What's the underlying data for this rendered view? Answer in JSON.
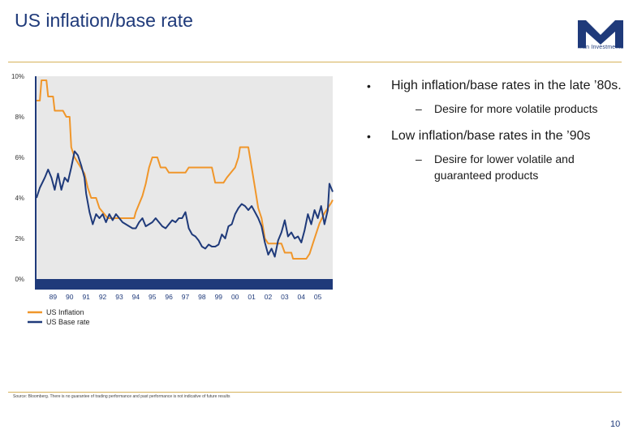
{
  "header": {
    "title": "US inflation/base rate"
  },
  "logo": {
    "text": "Man Investments",
    "color": "#1f3a7a"
  },
  "bullets": [
    {
      "text": "High inflation/base rates in the late ’80s.",
      "sub": "Desire for more volatile products"
    },
    {
      "text": "Low inflation/base rates in the ’90s",
      "sub": "Desire for lower volatile and guaranteed products"
    }
  ],
  "footer": {
    "source": "Source: Bloomberg. There is no guarantee of trading performance and past performance is not indicative of future results",
    "page": "10"
  },
  "chart_data": {
    "type": "line",
    "title": "",
    "xlabel": "",
    "ylabel": "",
    "x_range": [
      1988.0,
      2005.9
    ],
    "ylim": [
      0,
      10
    ],
    "yticks": [
      "0%",
      "2%",
      "4%",
      "6%",
      "8%",
      "10%"
    ],
    "xticks": [
      {
        "label": "89",
        "x": 1989
      },
      {
        "label": "90",
        "x": 1990
      },
      {
        "label": "91",
        "x": 1991
      },
      {
        "label": "92",
        "x": 1992
      },
      {
        "label": "93",
        "x": 1993
      },
      {
        "label": "94",
        "x": 1994
      },
      {
        "label": "95",
        "x": 1995
      },
      {
        "label": "96",
        "x": 1996
      },
      {
        "label": "97",
        "x": 1997
      },
      {
        "label": "98",
        "x": 1998
      },
      {
        "label": "99",
        "x": 1999
      },
      {
        "label": "00",
        "x": 2000
      },
      {
        "label": "01",
        "x": 2001
      },
      {
        "label": "02",
        "x": 2002
      },
      {
        "label": "03",
        "x": 2003
      },
      {
        "label": "04",
        "x": 2004
      },
      {
        "label": "05",
        "x": 2005
      }
    ],
    "grid": false,
    "legend_position": "bottom-left",
    "background": "#e8e8e8",
    "series": [
      {
        "name": "US Inflation",
        "color": "#f0962a",
        "points": [
          [
            1988.0,
            8.8
          ],
          [
            1988.2,
            8.8
          ],
          [
            1988.3,
            9.8
          ],
          [
            1988.6,
            9.8
          ],
          [
            1988.7,
            9.0
          ],
          [
            1989.0,
            9.0
          ],
          [
            1989.1,
            8.3
          ],
          [
            1989.6,
            8.3
          ],
          [
            1989.8,
            8.0
          ],
          [
            1990.0,
            8.0
          ],
          [
            1990.1,
            6.5
          ],
          [
            1990.3,
            6.0
          ],
          [
            1990.6,
            5.6
          ],
          [
            1990.9,
            5.2
          ],
          [
            1991.1,
            4.5
          ],
          [
            1991.3,
            4.0
          ],
          [
            1991.6,
            4.0
          ],
          [
            1991.8,
            3.5
          ],
          [
            1992.0,
            3.3
          ],
          [
            1992.3,
            3.0
          ],
          [
            1993.0,
            3.0
          ],
          [
            1993.5,
            3.0
          ],
          [
            1993.9,
            3.0
          ],
          [
            1994.0,
            3.3
          ],
          [
            1994.2,
            3.7
          ],
          [
            1994.4,
            4.1
          ],
          [
            1994.6,
            4.7
          ],
          [
            1994.8,
            5.5
          ],
          [
            1995.0,
            6.0
          ],
          [
            1995.3,
            6.0
          ],
          [
            1995.5,
            5.5
          ],
          [
            1995.8,
            5.5
          ],
          [
            1996.0,
            5.25
          ],
          [
            1996.5,
            5.25
          ],
          [
            1997.0,
            5.25
          ],
          [
            1997.2,
            5.5
          ],
          [
            1998.0,
            5.5
          ],
          [
            1998.6,
            5.5
          ],
          [
            1998.8,
            4.75
          ],
          [
            1999.3,
            4.75
          ],
          [
            1999.5,
            5.0
          ],
          [
            1999.8,
            5.3
          ],
          [
            2000.0,
            5.5
          ],
          [
            2000.2,
            6.0
          ],
          [
            2000.3,
            6.5
          ],
          [
            2000.8,
            6.5
          ],
          [
            2001.0,
            5.5
          ],
          [
            2001.2,
            4.5
          ],
          [
            2001.4,
            3.5
          ],
          [
            2001.6,
            3.0
          ],
          [
            2001.8,
            2.0
          ],
          [
            2002.0,
            1.75
          ],
          [
            2002.8,
            1.75
          ],
          [
            2003.0,
            1.3
          ],
          [
            2003.4,
            1.3
          ],
          [
            2003.5,
            1.0
          ],
          [
            2004.3,
            1.0
          ],
          [
            2004.5,
            1.25
          ],
          [
            2004.7,
            1.75
          ],
          [
            2004.9,
            2.25
          ],
          [
            2005.1,
            2.75
          ],
          [
            2005.4,
            3.25
          ],
          [
            2005.6,
            3.5
          ],
          [
            2005.8,
            3.75
          ],
          [
            2005.9,
            3.9
          ]
        ]
      },
      {
        "name": "US Base rate",
        "color": "#1f3a7a",
        "points": [
          [
            1988.0,
            4.0
          ],
          [
            1988.2,
            4.5
          ],
          [
            1988.5,
            5.0
          ],
          [
            1988.7,
            5.4
          ],
          [
            1988.9,
            5.0
          ],
          [
            1989.1,
            4.4
          ],
          [
            1989.3,
            5.2
          ],
          [
            1989.5,
            4.4
          ],
          [
            1989.7,
            5.0
          ],
          [
            1989.9,
            4.8
          ],
          [
            1990.1,
            5.5
          ],
          [
            1990.3,
            6.3
          ],
          [
            1990.5,
            6.1
          ],
          [
            1990.7,
            5.6
          ],
          [
            1990.9,
            5.0
          ],
          [
            1991.0,
            4.2
          ],
          [
            1991.2,
            3.3
          ],
          [
            1991.4,
            2.7
          ],
          [
            1991.6,
            3.2
          ],
          [
            1991.8,
            3.0
          ],
          [
            1992.0,
            3.2
          ],
          [
            1992.2,
            2.8
          ],
          [
            1992.4,
            3.2
          ],
          [
            1992.6,
            2.9
          ],
          [
            1992.8,
            3.2
          ],
          [
            1993.0,
            3.0
          ],
          [
            1993.2,
            2.8
          ],
          [
            1993.4,
            2.7
          ],
          [
            1993.6,
            2.6
          ],
          [
            1993.8,
            2.5
          ],
          [
            1994.0,
            2.5
          ],
          [
            1994.2,
            2.8
          ],
          [
            1994.4,
            3.0
          ],
          [
            1994.6,
            2.6
          ],
          [
            1994.8,
            2.7
          ],
          [
            1995.0,
            2.8
          ],
          [
            1995.2,
            3.0
          ],
          [
            1995.4,
            2.8
          ],
          [
            1995.6,
            2.6
          ],
          [
            1995.8,
            2.5
          ],
          [
            1996.0,
            2.7
          ],
          [
            1996.2,
            2.9
          ],
          [
            1996.4,
            2.8
          ],
          [
            1996.6,
            3.0
          ],
          [
            1996.8,
            3.0
          ],
          [
            1997.0,
            3.3
          ],
          [
            1997.2,
            2.5
          ],
          [
            1997.4,
            2.2
          ],
          [
            1997.6,
            2.1
          ],
          [
            1997.8,
            1.9
          ],
          [
            1998.0,
            1.6
          ],
          [
            1998.2,
            1.5
          ],
          [
            1998.4,
            1.7
          ],
          [
            1998.6,
            1.6
          ],
          [
            1998.8,
            1.6
          ],
          [
            1999.0,
            1.7
          ],
          [
            1999.2,
            2.2
          ],
          [
            1999.4,
            2.0
          ],
          [
            1999.6,
            2.6
          ],
          [
            1999.8,
            2.7
          ],
          [
            2000.0,
            3.2
          ],
          [
            2000.2,
            3.5
          ],
          [
            2000.4,
            3.7
          ],
          [
            2000.6,
            3.6
          ],
          [
            2000.8,
            3.4
          ],
          [
            2001.0,
            3.6
          ],
          [
            2001.2,
            3.3
          ],
          [
            2001.4,
            3.0
          ],
          [
            2001.6,
            2.6
          ],
          [
            2001.8,
            1.8
          ],
          [
            2002.0,
            1.2
          ],
          [
            2002.2,
            1.5
          ],
          [
            2002.4,
            1.1
          ],
          [
            2002.6,
            1.9
          ],
          [
            2002.8,
            2.3
          ],
          [
            2003.0,
            2.9
          ],
          [
            2003.2,
            2.1
          ],
          [
            2003.4,
            2.3
          ],
          [
            2003.6,
            2.0
          ],
          [
            2003.8,
            2.1
          ],
          [
            2004.0,
            1.8
          ],
          [
            2004.2,
            2.4
          ],
          [
            2004.4,
            3.2
          ],
          [
            2004.6,
            2.7
          ],
          [
            2004.8,
            3.4
          ],
          [
            2005.0,
            3.0
          ],
          [
            2005.2,
            3.6
          ],
          [
            2005.4,
            2.7
          ],
          [
            2005.6,
            3.4
          ],
          [
            2005.7,
            4.7
          ],
          [
            2005.9,
            4.3
          ]
        ]
      }
    ]
  }
}
